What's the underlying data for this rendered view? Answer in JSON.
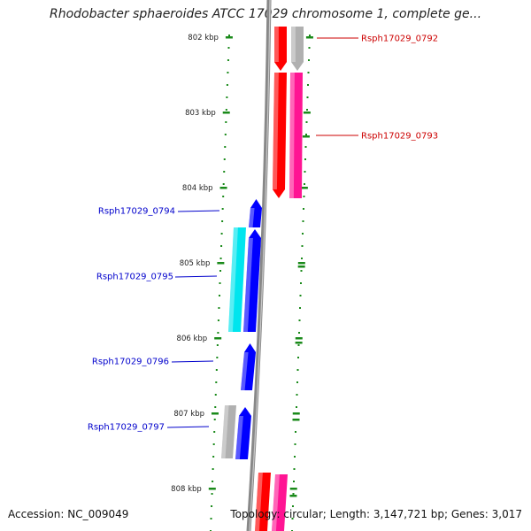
{
  "title": "Rhodobacter sphaeroides ATCC 17029 chromosome 1, complete ge...",
  "footer": {
    "accession": "Accession: NC_009049",
    "topology": "Topology: circular; Length: 3,147,721 bp; Genes: 3,017"
  },
  "scale_labels": [
    "802 kbp",
    "803 kbp",
    "804 kbp",
    "805 kbp",
    "806 kbp",
    "807 kbp",
    "808 kbp"
  ],
  "colors": {
    "red": "#ff0000",
    "pink": "#ff1493",
    "blue": "#0000ff",
    "cyan": "#00e5ee",
    "gray": "#b0b0b0",
    "backbone": "#888888",
    "ticks": "#1a8a1a",
    "label_right": "#cc0000",
    "label_left": "#0000cc"
  },
  "genes": [
    {
      "label": "Rsph17029_0792",
      "side": "right"
    },
    {
      "label": "Rsph17029_0793",
      "side": "right"
    },
    {
      "label": "Rsph17029_0794",
      "side": "left"
    },
    {
      "label": "Rsph17029_0795",
      "side": "left"
    },
    {
      "label": "Rsph17029_0796",
      "side": "left"
    },
    {
      "label": "Rsph17029_0797",
      "side": "left"
    }
  ]
}
